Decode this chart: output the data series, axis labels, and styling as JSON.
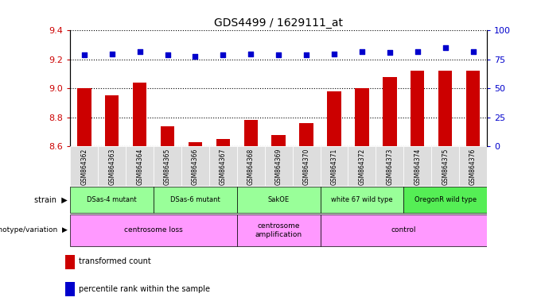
{
  "title": "GDS4499 / 1629111_at",
  "samples": [
    "GSM864362",
    "GSM864363",
    "GSM864364",
    "GSM864365",
    "GSM864366",
    "GSM864367",
    "GSM864368",
    "GSM864369",
    "GSM864370",
    "GSM864371",
    "GSM864372",
    "GSM864373",
    "GSM864374",
    "GSM864375",
    "GSM864376"
  ],
  "transformed_count": [
    9.0,
    8.95,
    9.04,
    8.74,
    8.63,
    8.65,
    8.78,
    8.68,
    8.76,
    8.98,
    9.0,
    9.08,
    9.12,
    9.12,
    9.12
  ],
  "percentile_rank": [
    79,
    80,
    82,
    79,
    78,
    79,
    80,
    79,
    79,
    80,
    82,
    81,
    82,
    85,
    82
  ],
  "ylim_left": [
    8.6,
    9.4
  ],
  "ylim_right": [
    0,
    100
  ],
  "yticks_left": [
    8.6,
    8.8,
    9.0,
    9.2,
    9.4
  ],
  "yticks_right": [
    0,
    25,
    50,
    75,
    100
  ],
  "bar_color": "#cc0000",
  "dot_color": "#0000cc",
  "dot_size": 18,
  "strain_groups": [
    {
      "label": "DSas-4 mutant",
      "start": 0,
      "end": 3,
      "color": "#99ff99"
    },
    {
      "label": "DSas-6 mutant",
      "start": 3,
      "end": 6,
      "color": "#99ff99"
    },
    {
      "label": "SakOE",
      "start": 6,
      "end": 9,
      "color": "#99ff99"
    },
    {
      "label": "white 67 wild type",
      "start": 9,
      "end": 12,
      "color": "#99ff99"
    },
    {
      "label": "OregonR wild type",
      "start": 12,
      "end": 15,
      "color": "#55ee55"
    }
  ],
  "geno_groups": [
    {
      "label": "centrosome loss",
      "start": 0,
      "end": 6
    },
    {
      "label": "centrosome\namplification",
      "start": 6,
      "end": 9
    },
    {
      "label": "control",
      "start": 9,
      "end": 15
    }
  ],
  "bar_width": 0.5,
  "grid_color": "black",
  "bg_color": "#dddddd",
  "strain_label": "strain",
  "geno_label": "genotype/variation"
}
